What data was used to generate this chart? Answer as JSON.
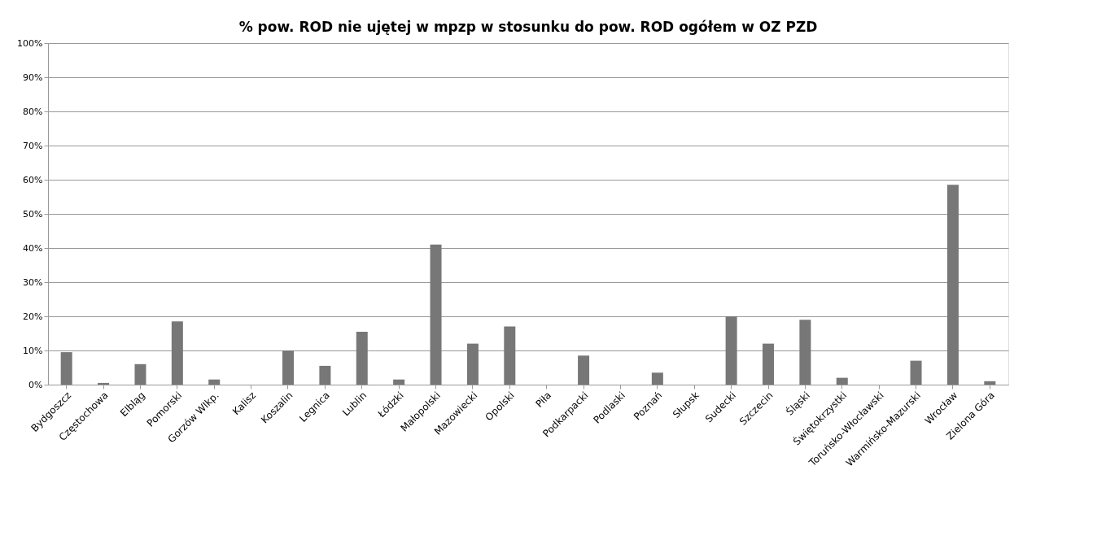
{
  "chart_data": {
    "type": "bar",
    "title": "% pow. ROD nie ujętej w mpzp w stosunku do pow. ROD ogółem w OZ PZD",
    "categories": [
      "Bydgoszcz",
      "Częstochowa",
      "Elbląg",
      "Pomorski",
      "Gorzów Wlkp.",
      "Kalisz",
      "Koszalin",
      "Legnica",
      "Lublin",
      "Łódzki",
      "Małopolski",
      "Mazowiecki",
      "Opolski",
      "Piła",
      "Podkarpacki",
      "Podlaski",
      "Poznań",
      "Słupsk",
      "Sudecki",
      "Szczecin",
      "Śląski",
      "Świętokrzystki",
      "Toruńsko-Włocławski",
      "Warmińsko-Mazurski",
      "Wrocław",
      "Zielona Góra"
    ],
    "values": [
      9.5,
      0.5,
      6,
      18.5,
      1.5,
      0,
      10,
      5.5,
      15.5,
      1.5,
      41,
      12,
      17,
      0,
      8.5,
      0,
      3.5,
      0,
      20,
      12,
      19,
      2,
      0,
      7,
      58.5,
      1
    ],
    "color": "#777777",
    "ylim": [
      0,
      100
    ],
    "yticks": [
      {
        "value": 0,
        "label": "0%"
      },
      {
        "value": 10,
        "label": "10%"
      },
      {
        "value": 20,
        "label": "20%"
      },
      {
        "value": 30,
        "label": "30%"
      },
      {
        "value": 40,
        "label": "40%"
      },
      {
        "value": 50,
        "label": "50%"
      },
      {
        "value": 60,
        "label": "60%"
      },
      {
        "value": 70,
        "label": "70%"
      },
      {
        "value": 80,
        "label": "80%"
      },
      {
        "value": 90,
        "label": "90%"
      },
      {
        "value": 100,
        "label": "100%"
      }
    ],
    "grid": "y"
  }
}
